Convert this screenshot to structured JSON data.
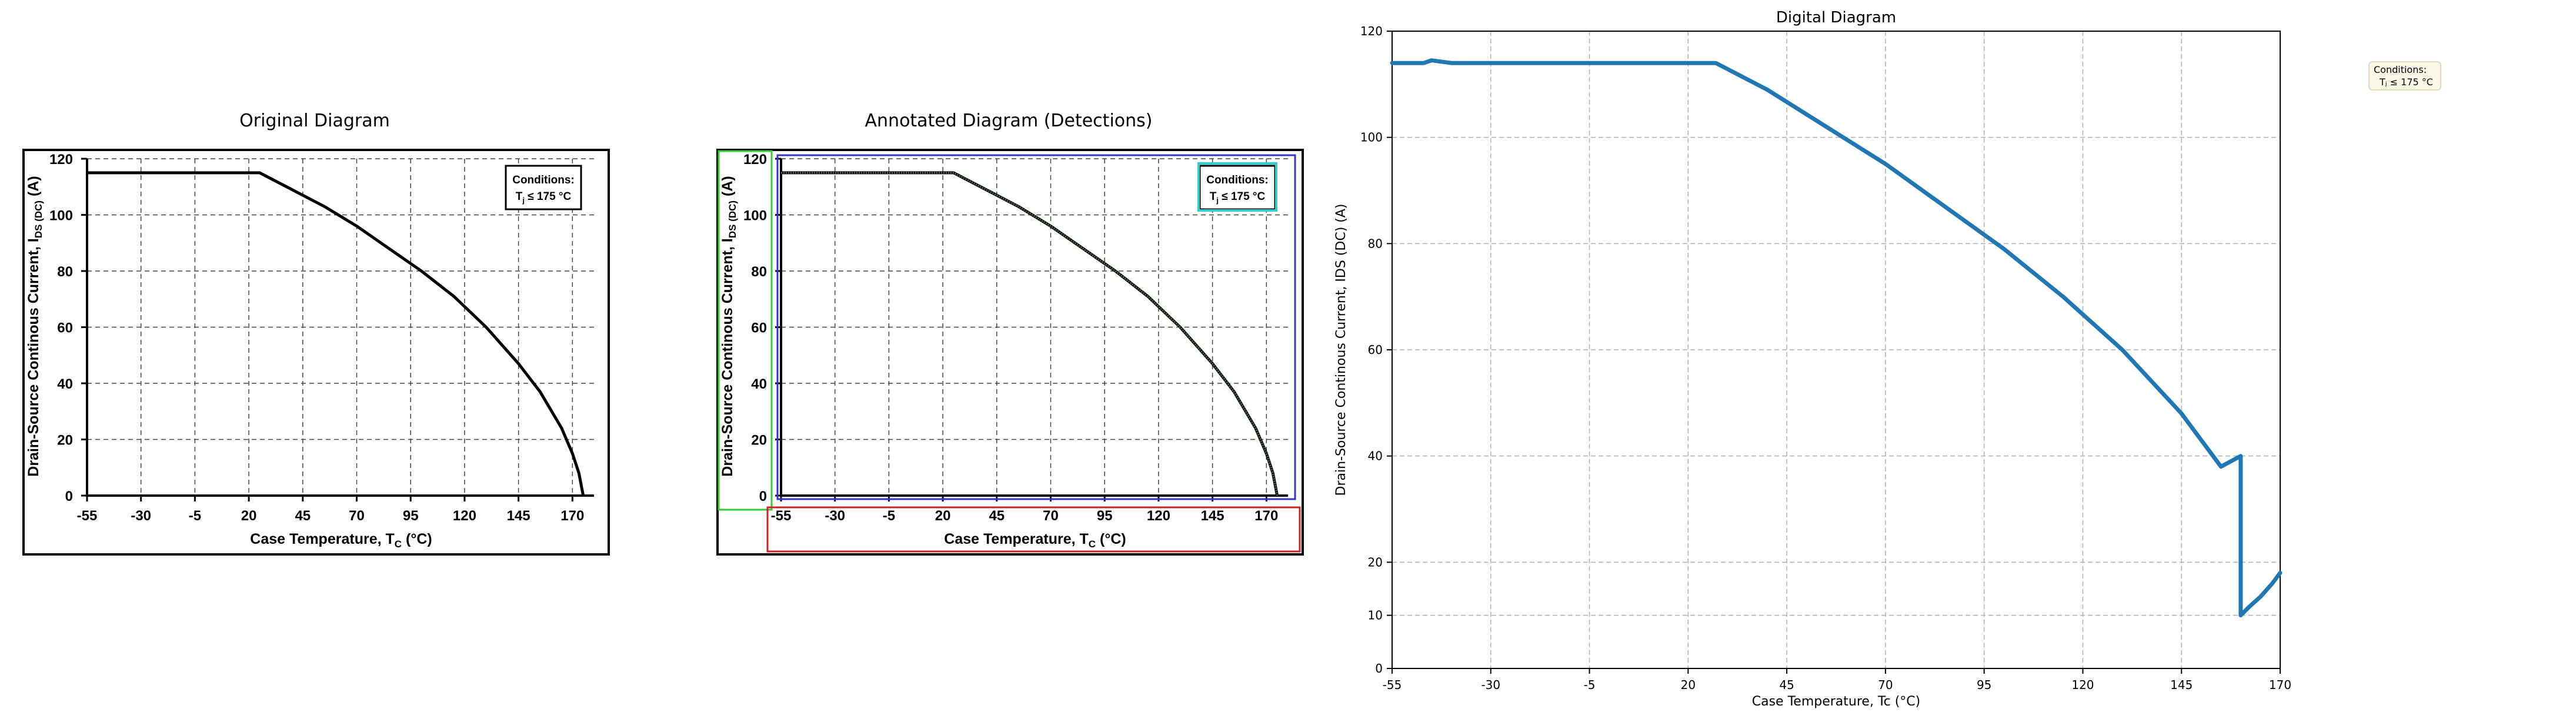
{
  "panels": [
    {
      "title": "Original Diagram",
      "xlabel": "Case Temperature, T",
      "xlabel_sub": "C",
      "xlabel_tail": " (°C)",
      "ylabel": "Drain-Source Continous Current, I",
      "ylabel_sub": "DS (DC)",
      "ylabel_tail": " (A)",
      "conditions_title": "Conditions:",
      "conditions_text": "T",
      "conditions_sub": "j",
      "conditions_tail": " ≤ 175 °C"
    },
    {
      "title": "Annotated Diagram (Detections)",
      "xlabel": "Case Temperature, T",
      "xlabel_sub": "C",
      "xlabel_tail": " (°C)",
      "ylabel": "Drain-Source Continous Current, I",
      "ylabel_sub": "DS (DC)",
      "ylabel_tail": " (A)",
      "conditions_title": "Conditions:",
      "conditions_text": "T",
      "conditions_sub": "j",
      "conditions_tail": " ≤ 175 °C"
    },
    {
      "title": "Digital Diagram",
      "xlabel": "Case Temperature, Tc (°C)",
      "ylabel": "Drain-Source Continous Current, IDS (DC) (A)",
      "conditions_title": "Conditions:",
      "conditions_text": "Tⱼ ≤ 175 °C"
    }
  ],
  "colors": {
    "curve": "#000000",
    "digital_curve": "#1f77b4",
    "grid": "#b0b0b0",
    "detect_green": "#33cc33",
    "detect_blue": "#3333cc",
    "detect_cyan": "#33cccc",
    "detect_red": "#cc2222",
    "detect_curve": "#4a7a4a"
  },
  "chart_data": [
    {
      "type": "line",
      "title": "Original Diagram",
      "xlabel": "Case Temperature, TC (°C)",
      "ylabel": "Drain-Source Continous Current, IDS (DC) (A)",
      "xticks": [
        -55,
        -30,
        -5,
        20,
        45,
        70,
        95,
        120,
        145,
        170
      ],
      "yticks": [
        0,
        20,
        40,
        60,
        80,
        100,
        120
      ],
      "xlim": [
        -55,
        180
      ],
      "ylim": [
        0,
        120
      ],
      "grid": true,
      "series": [
        {
          "x": [
            -55,
            25,
            40,
            55,
            70,
            85,
            100,
            115,
            130,
            145,
            155,
            165,
            170,
            173,
            175
          ],
          "y": [
            115,
            115,
            109,
            103,
            96,
            88,
            80,
            71,
            60,
            47,
            37,
            24,
            15,
            8,
            0
          ]
        }
      ]
    },
    {
      "type": "line",
      "title": "Annotated Diagram (Detections)",
      "xlabel": "Case Temperature, TC (°C)",
      "ylabel": "Drain-Source Continous Current, IDS (DC) (A)",
      "xticks": [
        -55,
        -30,
        -5,
        20,
        45,
        70,
        95,
        120,
        145,
        170
      ],
      "yticks": [
        0,
        20,
        40,
        60,
        80,
        100,
        120
      ],
      "xlim": [
        -55,
        180
      ],
      "ylim": [
        0,
        120
      ],
      "grid": true,
      "series": [
        {
          "x": [
            -55,
            25,
            40,
            55,
            70,
            85,
            100,
            115,
            130,
            145,
            155,
            165,
            170,
            173,
            175
          ],
          "y": [
            115,
            115,
            109,
            103,
            96,
            88,
            80,
            71,
            60,
            47,
            37,
            24,
            15,
            8,
            0
          ]
        }
      ]
    },
    {
      "type": "line",
      "title": "Digital Diagram",
      "xlabel": "Case Temperature, Tc (°C)",
      "ylabel": "Drain-Source Continous Current, IDS (DC) (A)",
      "xticks": [
        -55,
        -30,
        -5,
        20,
        45,
        70,
        95,
        120,
        145,
        170
      ],
      "yticks": [
        0,
        10,
        20,
        40,
        60,
        80,
        100,
        120
      ],
      "xlim": [
        -55,
        170
      ],
      "ylim": [
        0,
        120
      ],
      "grid": true,
      "series": [
        {
          "x": [
            -55,
            -47,
            -45,
            -40,
            27,
            40,
            55,
            70,
            85,
            100,
            115,
            130,
            145,
            155,
            160,
            160,
            162,
            165,
            168,
            170
          ],
          "y": [
            114,
            114,
            114.5,
            114,
            114,
            109,
            102,
            95,
            87,
            79,
            70,
            60,
            48,
            38,
            40,
            10,
            11.5,
            13.5,
            16,
            18
          ]
        }
      ]
    }
  ]
}
